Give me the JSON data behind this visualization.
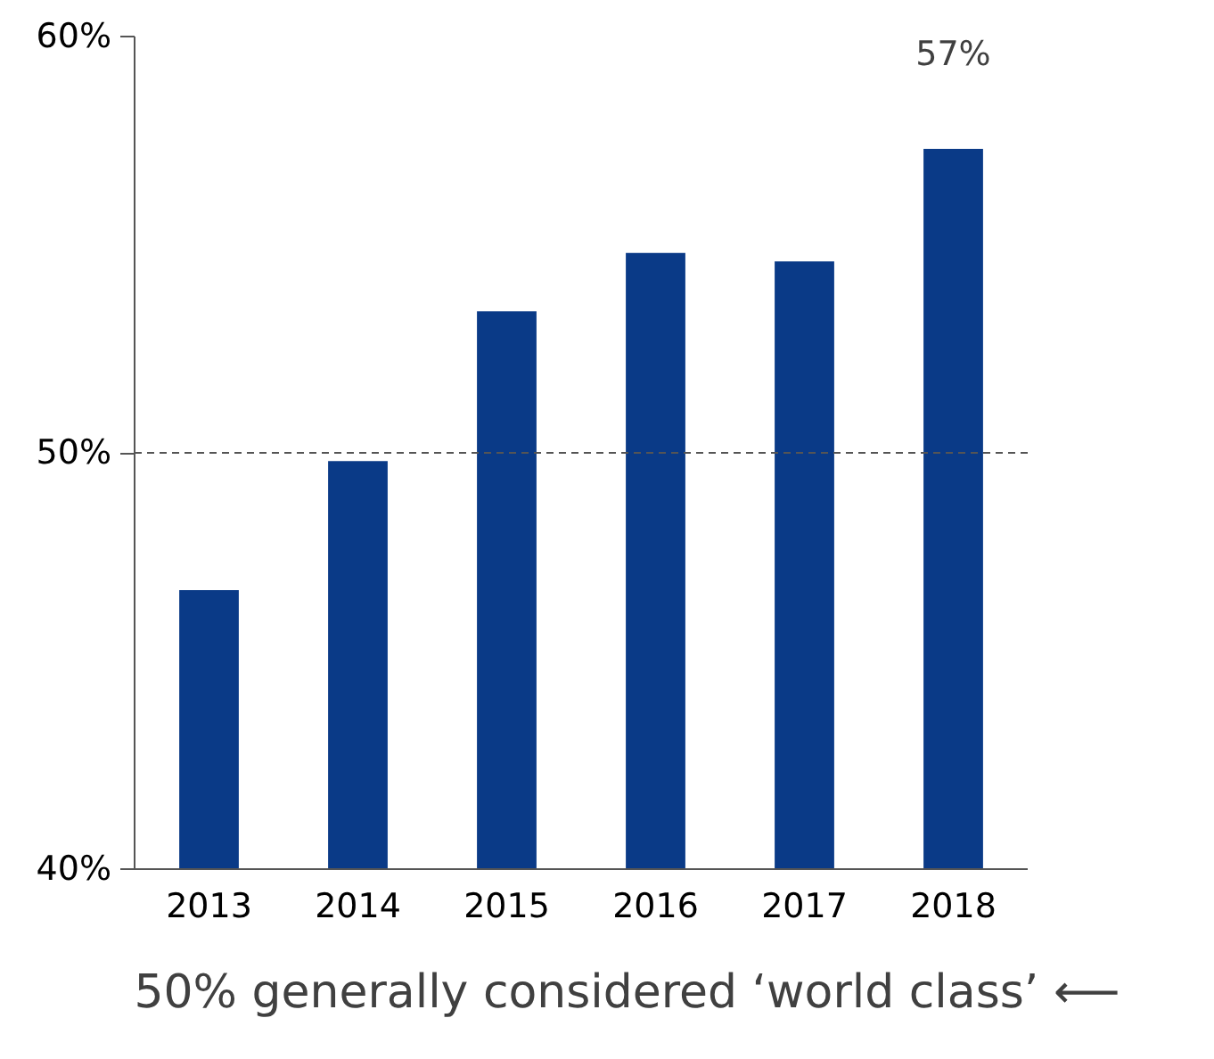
{
  "chart_data": {
    "type": "bar",
    "categories": [
      "2013",
      "2014",
      "2015",
      "2016",
      "2017",
      "2018"
    ],
    "values": [
      46.7,
      49.8,
      53.4,
      54.8,
      54.6,
      57.3
    ],
    "value_labels": [
      null,
      null,
      null,
      null,
      null,
      "57%"
    ],
    "color": "#0a3a87",
    "ylim": [
      40,
      60
    ],
    "yticks": [
      {
        "value": 40,
        "label": "40%"
      },
      {
        "value": 50,
        "label": "50%"
      },
      {
        "value": 60,
        "label": "60%"
      }
    ],
    "ref_lines": [
      {
        "axis": "y",
        "value": 50,
        "label": null,
        "color": "#555555",
        "line_style": "dashed"
      }
    ],
    "annotations": [
      "50% generally considered ‘world class’  ⟵"
    ],
    "grid": false
  }
}
